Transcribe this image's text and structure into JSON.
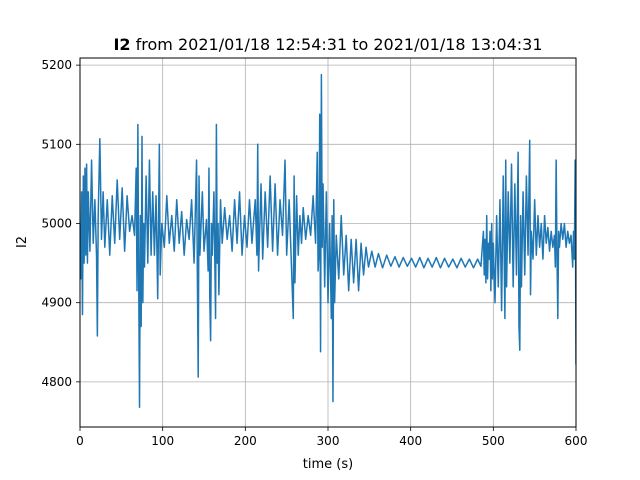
{
  "chart_data": {
    "type": "line",
    "title_bold": "I2",
    "title_rest": " from 2021/01/18 12:54:31 to 2021/01/18 13:04:31",
    "xlabel": "time (s)",
    "ylabel": "I2",
    "xlim": [
      0,
      600
    ],
    "ylim": [
      4743,
      5209
    ],
    "xticks": [
      0,
      100,
      200,
      300,
      400,
      500,
      600
    ],
    "yticks": [
      4800,
      4900,
      5000,
      5100,
      5200
    ],
    "grid": true,
    "series": [
      {
        "color": "#1f77b4",
        "points": [
          [
            0,
            5000
          ],
          [
            1,
            4930
          ],
          [
            2,
            5040
          ],
          [
            3,
            4885
          ],
          [
            4,
            5060
          ],
          [
            5,
            4950
          ],
          [
            6,
            5070
          ],
          [
            7,
            4960
          ],
          [
            8,
            5075
          ],
          [
            9,
            4950
          ],
          [
            10,
            5040
          ],
          [
            12,
            4965
          ],
          [
            14,
            5080
          ],
          [
            16,
            4975
          ],
          [
            18,
            5030
          ],
          [
            20,
            4960
          ],
          [
            21,
            4858
          ],
          [
            22,
            5010
          ],
          [
            24,
            5107
          ],
          [
            26,
            4980
          ],
          [
            28,
            5040
          ],
          [
            30,
            4970
          ],
          [
            33,
            5030
          ],
          [
            36,
            4960
          ],
          [
            39,
            5035
          ],
          [
            42,
            4975
          ],
          [
            45,
            5055
          ],
          [
            48,
            4980
          ],
          [
            51,
            5045
          ],
          [
            54,
            4965
          ],
          [
            57,
            5035
          ],
          [
            60,
            4990
          ],
          [
            63,
            5010
          ],
          [
            66,
            4985
          ],
          [
            68,
            5070
          ],
          [
            69,
            4915
          ],
          [
            70,
            5125
          ],
          [
            71,
            4935
          ],
          [
            72,
            4768
          ],
          [
            73,
            5010
          ],
          [
            74,
            4870
          ],
          [
            75,
            5110
          ],
          [
            76,
            4900
          ],
          [
            77,
            5000
          ],
          [
            78,
            4945
          ],
          [
            80,
            5060
          ],
          [
            82,
            4950
          ],
          [
            84,
            5080
          ],
          [
            86,
            4960
          ],
          [
            88,
            5040
          ],
          [
            90,
            4960
          ],
          [
            92,
            5035
          ],
          [
            94,
            4905
          ],
          [
            96,
            5100
          ],
          [
            97,
            4935
          ],
          [
            99,
            5000
          ],
          [
            102,
            4970
          ],
          [
            105,
            5035
          ],
          [
            108,
            4975
          ],
          [
            111,
            5010
          ],
          [
            114,
            4965
          ],
          [
            117,
            5030
          ],
          [
            120,
            4975
          ],
          [
            123,
            5015
          ],
          [
            126,
            4960
          ],
          [
            129,
            5005
          ],
          [
            132,
            4980
          ],
          [
            135,
            5030
          ],
          [
            138,
            4950
          ],
          [
            141,
            5080
          ],
          [
            142,
            4930
          ],
          [
            143,
            4806
          ],
          [
            144,
            5060
          ],
          [
            145,
            4960
          ],
          [
            148,
            5040
          ],
          [
            150,
            4965
          ],
          [
            153,
            5005
          ],
          [
            155,
            4940
          ],
          [
            156,
            5070
          ],
          [
            157,
            4905
          ],
          [
            158,
            4852
          ],
          [
            159,
            5000
          ],
          [
            160,
            4960
          ],
          [
            162,
            5040
          ],
          [
            164,
            4880
          ],
          [
            165,
            5125
          ],
          [
            166,
            4950
          ],
          [
            167,
            5000
          ],
          [
            168,
            4910
          ],
          [
            170,
            5030
          ],
          [
            172,
            4975
          ],
          [
            175,
            5020
          ],
          [
            178,
            4980
          ],
          [
            181,
            5010
          ],
          [
            184,
            4965
          ],
          [
            187,
            5030
          ],
          [
            190,
            4975
          ],
          [
            193,
            5040
          ],
          [
            196,
            4960
          ],
          [
            199,
            5010
          ],
          [
            202,
            4970
          ],
          [
            205,
            5030
          ],
          [
            208,
            4975
          ],
          [
            212,
            5030
          ],
          [
            214,
            4960
          ],
          [
            215,
            5100
          ],
          [
            216,
            4940
          ],
          [
            217,
            4980
          ],
          [
            219,
            5050
          ],
          [
            221,
            4955
          ],
          [
            224,
            5040
          ],
          [
            227,
            4970
          ],
          [
            230,
            5060
          ],
          [
            233,
            4965
          ],
          [
            236,
            5050
          ],
          [
            239,
            4960
          ],
          [
            242,
            5030
          ],
          [
            245,
            4985
          ],
          [
            248,
            5080
          ],
          [
            250,
            4960
          ],
          [
            253,
            5030
          ],
          [
            255,
            4970
          ],
          [
            258,
            4880
          ],
          [
            259,
            5060
          ],
          [
            260,
            4925
          ],
          [
            262,
            5035
          ],
          [
            264,
            4960
          ],
          [
            266,
            5010
          ],
          [
            268,
            4975
          ],
          [
            270,
            5020
          ],
          [
            273,
            4980
          ],
          [
            276,
            5010
          ],
          [
            279,
            4985
          ],
          [
            282,
            5035
          ],
          [
            285,
            4975
          ],
          [
            287,
            5090
          ],
          [
            288,
            4940
          ],
          [
            289,
            4960
          ],
          [
            290,
            5138
          ],
          [
            291,
            4838
          ],
          [
            292,
            5188
          ],
          [
            293,
            4970
          ],
          [
            294,
            5050
          ],
          [
            296,
            4920
          ],
          [
            298,
            5040
          ],
          [
            300,
            4900
          ],
          [
            302,
            5000
          ],
          [
            304,
            4880
          ],
          [
            305,
            5010
          ],
          [
            306,
            4775
          ],
          [
            307,
            5030
          ],
          [
            308,
            4900
          ],
          [
            310,
            4985
          ],
          [
            313,
            4930
          ],
          [
            316,
            5010
          ],
          [
            319,
            4935
          ],
          [
            322,
            4985
          ],
          [
            325,
            4915
          ],
          [
            328,
            4980
          ],
          [
            331,
            4925
          ],
          [
            334,
            4980
          ],
          [
            337,
            4915
          ],
          [
            340,
            4975
          ],
          [
            343,
            4935
          ],
          [
            346,
            4970
          ],
          [
            349,
            4945
          ],
          [
            353,
            4965
          ],
          [
            357,
            4945
          ],
          [
            361,
            4962
          ],
          [
            366,
            4944
          ],
          [
            371,
            4960
          ],
          [
            376,
            4946
          ],
          [
            381,
            4958
          ],
          [
            386,
            4945
          ],
          [
            391,
            4957
          ],
          [
            396,
            4946
          ],
          [
            401,
            4956
          ],
          [
            406,
            4945
          ],
          [
            411,
            4957
          ],
          [
            416,
            4944
          ],
          [
            421,
            4956
          ],
          [
            426,
            4945
          ],
          [
            431,
            4957
          ],
          [
            436,
            4944
          ],
          [
            441,
            4956
          ],
          [
            446,
            4945
          ],
          [
            451,
            4955
          ],
          [
            456,
            4944
          ],
          [
            461,
            4956
          ],
          [
            466,
            4945
          ],
          [
            471,
            4955
          ],
          [
            476,
            4944
          ],
          [
            481,
            4955
          ],
          [
            485,
            4946
          ],
          [
            488,
            4990
          ],
          [
            489,
            4935
          ],
          [
            490,
            4980
          ],
          [
            491,
            4925
          ],
          [
            492,
            5010
          ],
          [
            493,
            4930
          ],
          [
            494,
            4975
          ],
          [
            495,
            4955
          ],
          [
            496,
            4990
          ],
          [
            497,
            4915
          ],
          [
            498,
            5000
          ],
          [
            499,
            4930
          ],
          [
            500,
            4975
          ],
          [
            502,
            4900
          ],
          [
            504,
            5010
          ],
          [
            506,
            4920
          ],
          [
            508,
            5030
          ],
          [
            510,
            4890
          ],
          [
            512,
            5060
          ],
          [
            514,
            4880
          ],
          [
            515,
            5080
          ],
          [
            516,
            4920
          ],
          [
            518,
            5040
          ],
          [
            520,
            4950
          ],
          [
            522,
            5075
          ],
          [
            524,
            4920
          ],
          [
            526,
            5050
          ],
          [
            528,
            4935
          ],
          [
            530,
            5090
          ],
          [
            531,
            4870
          ],
          [
            532,
            4840
          ],
          [
            533,
            5010
          ],
          [
            534,
            4920
          ],
          [
            536,
            5040
          ],
          [
            538,
            4935
          ],
          [
            540,
            5060
          ],
          [
            542,
            4960
          ],
          [
            544,
            5105
          ],
          [
            545,
            4910
          ],
          [
            546,
            4990
          ],
          [
            548,
            4955
          ],
          [
            550,
            5030
          ],
          [
            552,
            4960
          ],
          [
            554,
            5010
          ],
          [
            556,
            4970
          ],
          [
            558,
            5000
          ],
          [
            560,
            4955
          ],
          [
            562,
            5010
          ],
          [
            564,
            4975
          ],
          [
            566,
            4995
          ],
          [
            568,
            4965
          ],
          [
            570,
            4990
          ],
          [
            572,
            4970
          ],
          [
            574,
            4985
          ],
          [
            575,
            4945
          ],
          [
            576,
            5080
          ],
          [
            577,
            4960
          ],
          [
            578,
            4880
          ],
          [
            579,
            4990
          ],
          [
            580,
            4970
          ],
          [
            582,
            5000
          ],
          [
            584,
            4980
          ],
          [
            586,
            5000
          ],
          [
            588,
            4970
          ],
          [
            590,
            4990
          ],
          [
            592,
            4975
          ],
          [
            594,
            4985
          ],
          [
            596,
            4945
          ],
          [
            597,
            4990
          ],
          [
            598,
            4955
          ],
          [
            599,
            5080
          ],
          [
            600,
            4822
          ]
        ]
      }
    ]
  }
}
